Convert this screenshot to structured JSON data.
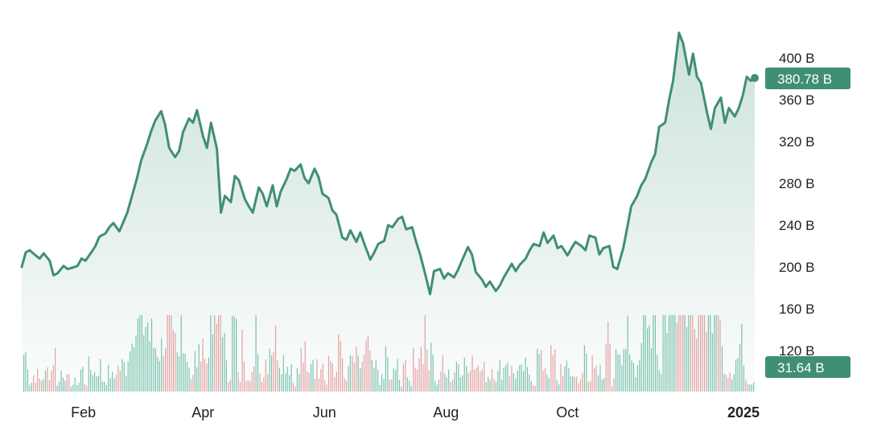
{
  "chart_data": {
    "type": "area",
    "title": "",
    "x_axis": {
      "ticks": [
        {
          "date": "2024-02-01",
          "label": "Feb",
          "bold": false
        },
        {
          "date": "2024-04-01",
          "label": "Apr",
          "bold": false
        },
        {
          "date": "2024-06-01",
          "label": "Jun",
          "bold": false
        },
        {
          "date": "2024-08-01",
          "label": "Aug",
          "bold": false
        },
        {
          "date": "2024-10-01",
          "label": "Oct",
          "bold": false
        },
        {
          "date": "2025-01-01",
          "label": "2025",
          "bold": true
        }
      ],
      "range": [
        "2024-01-01",
        "2025-01-03"
      ]
    },
    "y_axis": {
      "ticks": [
        {
          "value": 120,
          "label": "120 B"
        },
        {
          "value": 160,
          "label": "160 B"
        },
        {
          "value": 200,
          "label": "200 B"
        },
        {
          "value": 240,
          "label": "240 B"
        },
        {
          "value": 280,
          "label": "280 B"
        },
        {
          "value": 320,
          "label": "320 B"
        },
        {
          "value": 360,
          "label": "360 B"
        },
        {
          "value": 400,
          "label": "400 B"
        }
      ],
      "unit": "B",
      "side": "right"
    },
    "series": [
      {
        "name": "",
        "color": "#3f8f75",
        "values": [
          [
            "2024-01-01",
            200
          ],
          [
            "2024-01-03",
            214
          ],
          [
            "2024-01-05",
            216
          ],
          [
            "2024-01-08",
            211
          ],
          [
            "2024-01-10",
            208
          ],
          [
            "2024-01-12",
            213
          ],
          [
            "2024-01-15",
            206
          ],
          [
            "2024-01-17",
            192
          ],
          [
            "2024-01-19",
            194
          ],
          [
            "2024-01-22",
            201
          ],
          [
            "2024-01-24",
            198
          ],
          [
            "2024-01-26",
            199
          ],
          [
            "2024-01-29",
            201
          ],
          [
            "2024-01-31",
            208
          ],
          [
            "2024-02-02",
            206
          ],
          [
            "2024-02-05",
            214
          ],
          [
            "2024-02-07",
            220
          ],
          [
            "2024-02-09",
            229
          ],
          [
            "2024-02-12",
            232
          ],
          [
            "2024-02-14",
            238
          ],
          [
            "2024-02-16",
            242
          ],
          [
            "2024-02-19",
            234
          ],
          [
            "2024-02-21",
            243
          ],
          [
            "2024-02-23",
            252
          ],
          [
            "2024-02-26",
            272
          ],
          [
            "2024-02-28",
            286
          ],
          [
            "2024-03-01",
            302
          ],
          [
            "2024-03-04",
            318
          ],
          [
            "2024-03-06",
            330
          ],
          [
            "2024-03-08",
            340
          ],
          [
            "2024-03-11",
            349
          ],
          [
            "2024-03-13",
            336
          ],
          [
            "2024-03-15",
            314
          ],
          [
            "2024-03-18",
            305
          ],
          [
            "2024-03-20",
            311
          ],
          [
            "2024-03-22",
            329
          ],
          [
            "2024-03-25",
            342
          ],
          [
            "2024-03-27",
            338
          ],
          [
            "2024-03-29",
            350
          ],
          [
            "2024-04-01",
            325
          ],
          [
            "2024-04-03",
            314
          ],
          [
            "2024-04-05",
            338
          ],
          [
            "2024-04-08",
            313
          ],
          [
            "2024-04-10",
            252
          ],
          [
            "2024-04-12",
            268
          ],
          [
            "2024-04-15",
            262
          ],
          [
            "2024-04-17",
            287
          ],
          [
            "2024-04-19",
            283
          ],
          [
            "2024-04-22",
            265
          ],
          [
            "2024-04-24",
            258
          ],
          [
            "2024-04-26",
            252
          ],
          [
            "2024-04-29",
            276
          ],
          [
            "2024-05-01",
            270
          ],
          [
            "2024-05-03",
            258
          ],
          [
            "2024-05-06",
            278
          ],
          [
            "2024-05-08",
            258
          ],
          [
            "2024-05-10",
            272
          ],
          [
            "2024-05-13",
            284
          ],
          [
            "2024-05-15",
            294
          ],
          [
            "2024-05-17",
            292
          ],
          [
            "2024-05-20",
            298
          ],
          [
            "2024-05-22",
            285
          ],
          [
            "2024-05-24",
            280
          ],
          [
            "2024-05-27",
            294
          ],
          [
            "2024-05-29",
            286
          ],
          [
            "2024-05-31",
            270
          ],
          [
            "2024-06-03",
            266
          ],
          [
            "2024-06-05",
            254
          ],
          [
            "2024-06-07",
            250
          ],
          [
            "2024-06-10",
            228
          ],
          [
            "2024-06-12",
            226
          ],
          [
            "2024-06-14",
            235
          ],
          [
            "2024-06-17",
            224
          ],
          [
            "2024-06-19",
            233
          ],
          [
            "2024-06-21",
            222
          ],
          [
            "2024-06-24",
            207
          ],
          [
            "2024-06-26",
            214
          ],
          [
            "2024-06-28",
            222
          ],
          [
            "2024-07-01",
            225
          ],
          [
            "2024-07-03",
            240
          ],
          [
            "2024-07-05",
            238
          ],
          [
            "2024-07-08",
            246
          ],
          [
            "2024-07-10",
            248
          ],
          [
            "2024-07-12",
            236
          ],
          [
            "2024-07-15",
            238
          ],
          [
            "2024-07-17",
            224
          ],
          [
            "2024-07-19",
            212
          ],
          [
            "2024-07-22",
            190
          ],
          [
            "2024-07-24",
            174
          ],
          [
            "2024-07-26",
            196
          ],
          [
            "2024-07-29",
            198
          ],
          [
            "2024-07-31",
            189
          ],
          [
            "2024-08-02",
            194
          ],
          [
            "2024-08-05",
            190
          ],
          [
            "2024-08-07",
            197
          ],
          [
            "2024-08-09",
            206
          ],
          [
            "2024-08-12",
            219
          ],
          [
            "2024-08-14",
            212
          ],
          [
            "2024-08-16",
            195
          ],
          [
            "2024-08-19",
            188
          ],
          [
            "2024-08-21",
            181
          ],
          [
            "2024-08-23",
            186
          ],
          [
            "2024-08-26",
            177
          ],
          [
            "2024-08-28",
            182
          ],
          [
            "2024-08-30",
            190
          ],
          [
            "2024-09-03",
            203
          ],
          [
            "2024-09-05",
            196
          ],
          [
            "2024-09-07",
            202
          ],
          [
            "2024-09-10",
            208
          ],
          [
            "2024-09-12",
            216
          ],
          [
            "2024-09-14",
            222
          ],
          [
            "2024-09-17",
            220
          ],
          [
            "2024-09-19",
            233
          ],
          [
            "2024-09-21",
            223
          ],
          [
            "2024-09-24",
            230
          ],
          [
            "2024-09-26",
            218
          ],
          [
            "2024-09-28",
            220
          ],
          [
            "2024-10-01",
            211
          ],
          [
            "2024-10-03",
            218
          ],
          [
            "2024-10-05",
            224
          ],
          [
            "2024-10-08",
            220
          ],
          [
            "2024-10-10",
            216
          ],
          [
            "2024-10-12",
            230
          ],
          [
            "2024-10-15",
            228
          ],
          [
            "2024-10-17",
            212
          ],
          [
            "2024-10-19",
            218
          ],
          [
            "2024-10-22",
            220
          ],
          [
            "2024-10-24",
            200
          ],
          [
            "2024-10-26",
            198
          ],
          [
            "2024-10-29",
            218
          ],
          [
            "2024-10-31",
            238
          ],
          [
            "2024-11-02",
            258
          ],
          [
            "2024-11-05",
            268
          ],
          [
            "2024-11-07",
            278
          ],
          [
            "2024-11-09",
            284
          ],
          [
            "2024-11-12",
            300
          ],
          [
            "2024-11-14",
            308
          ],
          [
            "2024-11-16",
            334
          ],
          [
            "2024-11-19",
            338
          ],
          [
            "2024-11-21",
            360
          ],
          [
            "2024-11-23",
            378
          ],
          [
            "2024-11-26",
            424
          ],
          [
            "2024-11-28",
            414
          ],
          [
            "2024-12-01",
            384
          ],
          [
            "2024-12-03",
            404
          ],
          [
            "2024-12-05",
            382
          ],
          [
            "2024-12-07",
            376
          ],
          [
            "2024-12-10",
            348
          ],
          [
            "2024-12-12",
            332
          ],
          [
            "2024-12-14",
            352
          ],
          [
            "2024-12-17",
            362
          ],
          [
            "2024-12-19",
            338
          ],
          [
            "2024-12-21",
            352
          ],
          [
            "2024-12-24",
            344
          ],
          [
            "2024-12-26",
            352
          ],
          [
            "2024-12-28",
            364
          ],
          [
            "2024-12-30",
            382
          ],
          [
            "2025-01-01",
            378
          ],
          [
            "2025-01-03",
            380.78
          ]
        ]
      }
    ],
    "volume": {
      "color_up": "#7cc4b0",
      "color_down": "#e8a3a3",
      "peak_label": "31.64 B"
    },
    "current_value_label": "380.78 B",
    "grid": false,
    "legend": "none"
  },
  "colors": {
    "line": "#3f8f75",
    "fill_top": "#3f8f75",
    "badge": "#3f8f75",
    "label": "#1f1f1f"
  }
}
